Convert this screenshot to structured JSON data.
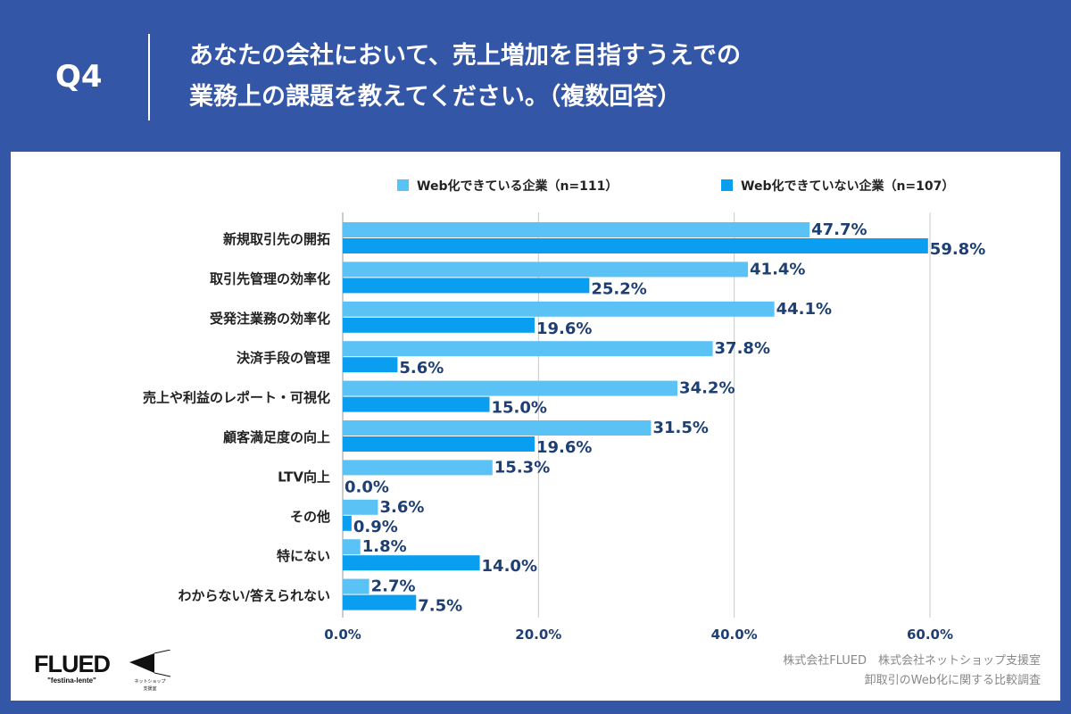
{
  "header": {
    "question": "Q4",
    "title_line1": "あなたの会社において、売上増加を目指すうえでの",
    "title_line2": "業務上の課題を教えてください。（複数回答）"
  },
  "chart_data": {
    "type": "bar",
    "orientation": "horizontal",
    "categories": [
      "新規取引先の開拓",
      "取引先管理の効率化",
      "受発注業務の効率化",
      "決済手段の管理",
      "売上や利益のレポート・可視化",
      "顧客満足度の向上",
      "LTV向上",
      "その他",
      "特にない",
      "わからない/答えられない"
    ],
    "series": [
      {
        "name": "Web化できている企業（n=111）",
        "color": "#5bc2f6",
        "values": [
          47.7,
          41.4,
          44.1,
          37.8,
          34.2,
          31.5,
          15.3,
          3.6,
          1.8,
          2.7
        ]
      },
      {
        "name": "Web化できていない企業（n=107）",
        "color": "#0a9ef0",
        "values": [
          59.8,
          25.2,
          19.6,
          5.6,
          15.0,
          19.6,
          0.0,
          0.9,
          14.0,
          7.5
        ]
      }
    ],
    "xlim": [
      0,
      70
    ],
    "xticks": [
      0,
      20,
      40,
      60
    ],
    "xtick_labels": [
      "0.0%",
      "20.0%",
      "40.0%",
      "60.0%"
    ],
    "grid": true,
    "legend": "top-right",
    "label_color": "#1d3f73"
  },
  "footer": {
    "line1": "株式会社FLUED　株式会社ネットショップ支援室",
    "line2": "卸取引のWeb化に関する比較調査"
  },
  "logos": {
    "flued": "FLUED",
    "flued_tagline": "\"festina-lente\"",
    "netshop": "ネットショップ支援室"
  }
}
